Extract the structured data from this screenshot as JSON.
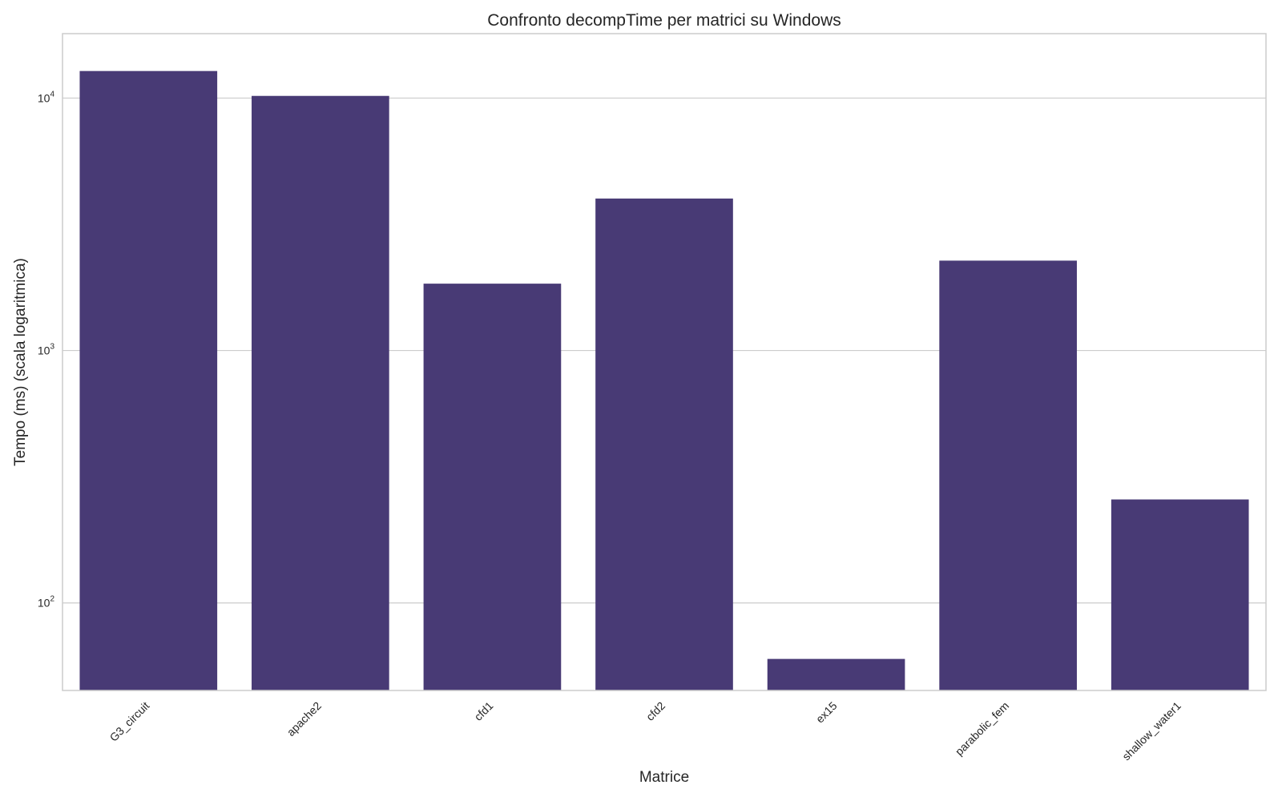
{
  "chart_data": {
    "type": "bar",
    "title": "Confronto decompTime per matrici su Windows",
    "xlabel": "Matrice",
    "ylabel": "Tempo (ms) (scala logaritmica)",
    "y_scale": "log",
    "ylim": [
      45,
      18000
    ],
    "y_ticks": [
      {
        "value": 100,
        "base": "10",
        "exp": "2"
      },
      {
        "value": 1000,
        "base": "10",
        "exp": "3"
      },
      {
        "value": 10000,
        "base": "10",
        "exp": "4"
      }
    ],
    "categories": [
      "G3_circuit",
      "apache2",
      "cfd1",
      "cfd2",
      "ex15",
      "parabolic_fem",
      "shallow_water1"
    ],
    "values": [
      12800,
      10200,
      1840,
      4000,
      60,
      2270,
      257
    ],
    "bar_color": "#483a75",
    "grid": true,
    "legend": "none"
  }
}
